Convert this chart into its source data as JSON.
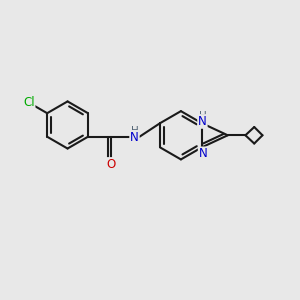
{
  "background_color": "#e8e8e8",
  "bond_color": "#1a1a1a",
  "bond_width": 1.5,
  "atom_colors": {
    "Cl": "#00aa00",
    "O": "#cc0000",
    "N": "#0000cc",
    "NH_blue": "#0000cc",
    "H_gray": "#556677"
  },
  "font_size": 8.5,
  "fig_width": 3.0,
  "fig_height": 3.0,
  "dpi": 100
}
